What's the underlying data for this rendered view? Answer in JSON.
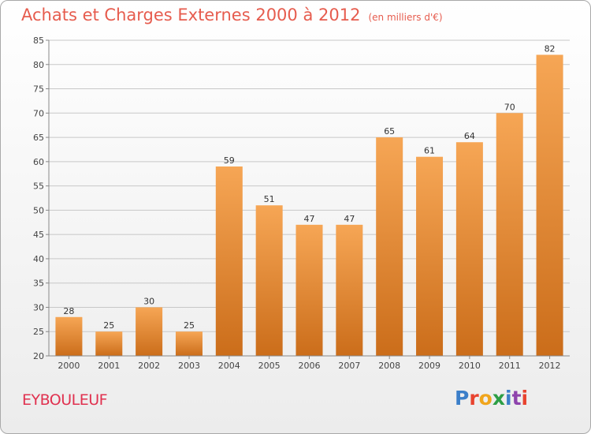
{
  "header": {
    "title": "Achats et Charges Externes 2000 à 2012",
    "subtitle": "(en milliers d'€)"
  },
  "footer": {
    "commune": "EYBOULEUF",
    "logo_letters": [
      {
        "ch": "P",
        "color": "#3b7fc9"
      },
      {
        "ch": "r",
        "color": "#e8432f"
      },
      {
        "ch": "o",
        "color": "#f0a51c"
      },
      {
        "ch": "x",
        "color": "#2c9e45"
      },
      {
        "ch": "i",
        "color": "#3b7fc9"
      },
      {
        "ch": "t",
        "color": "#8e44ad"
      },
      {
        "ch": "i",
        "color": "#e8432f"
      }
    ]
  },
  "chart_data": {
    "type": "bar",
    "title": "Achats et Charges Externes 2000 à 2012",
    "subtitle": "(en milliers d'€)",
    "categories": [
      "2000",
      "2001",
      "2002",
      "2003",
      "2004",
      "2005",
      "2006",
      "2007",
      "2008",
      "2009",
      "2010",
      "2011",
      "2012"
    ],
    "values": [
      28,
      25,
      30,
      25,
      59,
      51,
      47,
      47,
      65,
      61,
      64,
      70,
      82
    ],
    "ylim": [
      20,
      85
    ],
    "yticks": [
      20,
      25,
      30,
      35,
      40,
      45,
      50,
      55,
      60,
      65,
      70,
      75,
      80,
      85
    ],
    "grid": true,
    "colors": {
      "bar_light": "#f6a655",
      "bar_dark": "#cb6d1a",
      "grid": "#c8c8c8",
      "title": "#e65c4e",
      "commune": "#e0314f"
    }
  }
}
